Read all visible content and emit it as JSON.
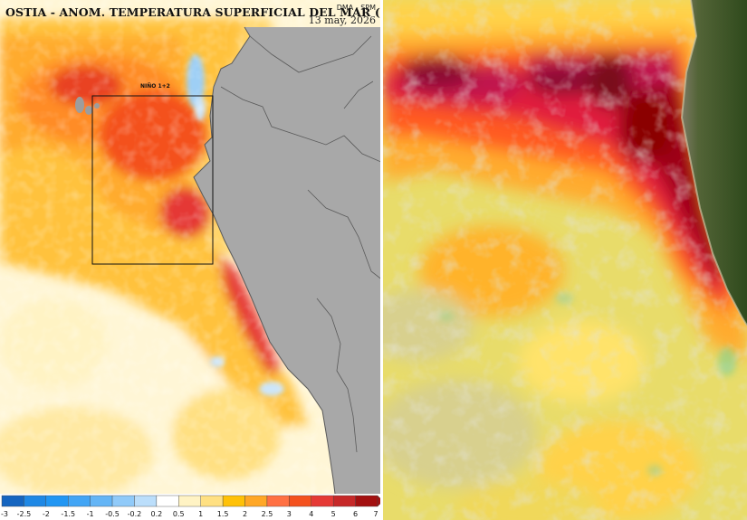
{
  "left_map": {
    "title": "OSTIA - ANOM. TEMPERATURA SUPERFICIAL DEL MAR (°C)",
    "agency": "DMA - SPM",
    "date": "13 may, 2026",
    "region_label": "NIÑO 1+2"
  },
  "colorbar": {
    "ticks": [
      "-3",
      "-2.5",
      "-2",
      "-1.5",
      "-1",
      "-0.5",
      "-0.2",
      "0.2",
      "0.5",
      "1",
      "1.5",
      "2",
      "2.5",
      "3",
      "4",
      "5",
      "6",
      "7"
    ],
    "colors": [
      "#1565c0",
      "#1e88e5",
      "#2196f3",
      "#42a5f5",
      "#64b5f6",
      "#90caf9",
      "#bbdefb",
      "#ffffff",
      "#fff3c4",
      "#ffe082",
      "#ffc107",
      "#ffa726",
      "#ff7043",
      "#f4511e",
      "#e53935",
      "#c62828",
      "#a31010"
    ]
  },
  "colors": {
    "land": "#a8a8a8",
    "border": "#5a5a5a",
    "satellite_land": "#4a5e2e",
    "anomaly_hot": "#8b0000"
  }
}
